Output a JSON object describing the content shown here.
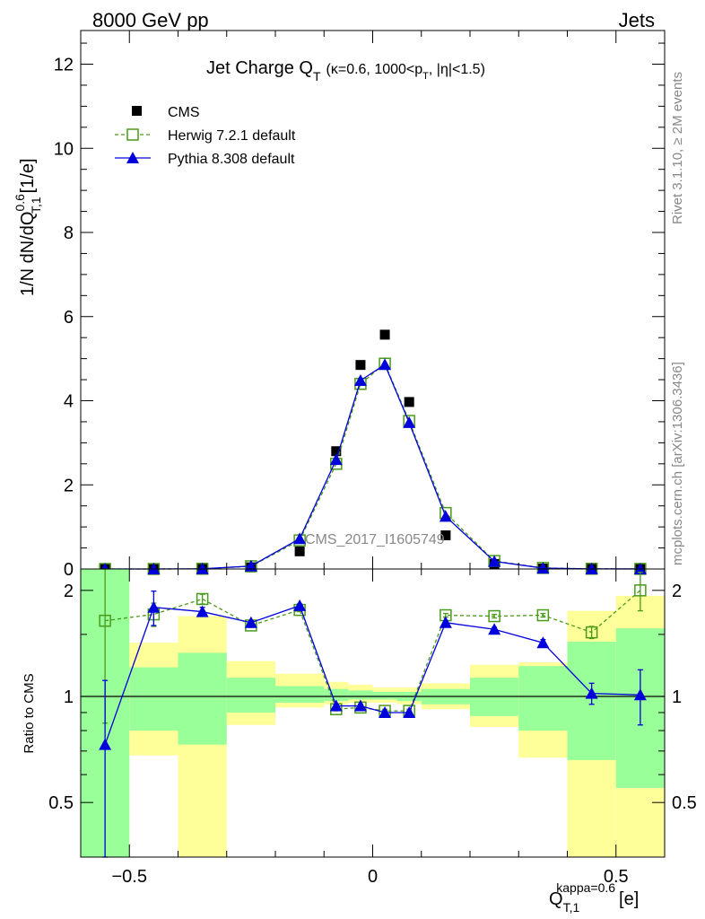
{
  "header": {
    "left": "8000 GeV pp",
    "right": "Jets"
  },
  "side_labels": {
    "rivet": "Rivet 3.1.10, ≥ 2M events",
    "mcplots": "mcplots.cern.ch [arXiv:1306.3436]"
  },
  "watermark": "CMS_2017_I1605749",
  "chart_data": [
    {
      "type": "scatter",
      "title_main": "Jet Charge Q",
      "title_sub": "T",
      "title_paren": "(κ=0.6, 1000<p",
      "title_paren_sub": "T",
      "title_paren_end": ", |η|<1.5)",
      "ylabel_main": "1/N dN/dQ",
      "ylabel_sup": "0.6",
      "ylabel_sub": "T,1",
      "ylabel_unit": "[1/e]",
      "xlim": [
        -0.6,
        0.6
      ],
      "ylim": [
        0,
        12.8
      ],
      "yticks": [
        0,
        2,
        4,
        6,
        8,
        10,
        12
      ],
      "legend_position": "top-left",
      "legend": [
        "CMS",
        "Herwig 7.2.1 default",
        "Pythia 8.308 default"
      ],
      "x": [
        -0.55,
        -0.45,
        -0.35,
        -0.25,
        -0.15,
        -0.075,
        -0.025,
        0.025,
        0.075,
        0.15,
        0.25,
        0.35,
        0.45,
        0.55
      ],
      "series": [
        {
          "name": "CMS",
          "color": "#000000",
          "marker": "square-filled",
          "values": [
            0.0,
            0.0,
            0.003,
            0.04,
            0.42,
            2.8,
            4.85,
            5.57,
            3.97,
            0.8,
            0.12,
            0.01,
            0.003,
            0.001
          ]
        },
        {
          "name": "Herwig 7.2.1 default",
          "color": "#4a9a1a",
          "marker": "square-open",
          "line": "dashed",
          "values": [
            0.0,
            0.0,
            0.005,
            0.065,
            0.68,
            2.5,
            4.4,
            4.88,
            3.52,
            1.33,
            0.19,
            0.025,
            0.005,
            0.002
          ]
        },
        {
          "name": "Pythia 8.308 default",
          "color": "#0000dd",
          "marker": "triangle-filled",
          "line": "solid",
          "values": [
            0.0,
            0.0,
            0.005,
            0.07,
            0.72,
            2.6,
            4.48,
            4.86,
            3.48,
            1.25,
            0.18,
            0.02,
            0.003,
            0.001
          ]
        }
      ]
    },
    {
      "type": "scatter",
      "ylabel": "Ratio to CMS",
      "xlabel_main": "Q",
      "xlabel_sub": "T,1",
      "xlabel_sup": "kappa=0.6",
      "xlabel_unit": "[e]",
      "xlim": [
        -0.6,
        0.6
      ],
      "ylim": [
        0.35,
        2.3
      ],
      "xticks": [
        -0.5,
        0,
        0.5
      ],
      "xtick_labels": [
        "−0.5",
        "0",
        "0.5"
      ],
      "yticks": [
        0.5,
        1,
        2
      ],
      "ytick_labels": [
        "0.5",
        "1",
        "2"
      ],
      "reference_line": 1,
      "bands": {
        "edges": [
          -0.6,
          -0.5,
          -0.4,
          -0.3,
          -0.2,
          -0.1,
          -0.05,
          0.0,
          0.05,
          0.1,
          0.2,
          0.3,
          0.4,
          0.5,
          0.6
        ],
        "yellow_low": [
          0.35,
          0.68,
          0.35,
          0.83,
          0.93,
          0.95,
          0.96,
          0.96,
          0.95,
          0.92,
          0.82,
          0.67,
          0.35,
          0.35
        ],
        "yellow_high": [
          2.3,
          1.42,
          1.69,
          1.26,
          1.16,
          1.1,
          1.08,
          1.06,
          1.06,
          1.09,
          1.23,
          1.25,
          1.75,
          1.93
        ],
        "green_low": [
          0.35,
          0.8,
          0.73,
          0.9,
          0.96,
          0.97,
          0.98,
          0.98,
          0.97,
          0.95,
          0.88,
          0.8,
          0.66,
          0.55
        ],
        "green_high": [
          2.3,
          1.21,
          1.33,
          1.13,
          1.07,
          1.05,
          1.04,
          1.03,
          1.03,
          1.05,
          1.13,
          1.22,
          1.43,
          1.56
        ]
      },
      "series": [
        {
          "name": "Herwig 7.2.1 default",
          "color": "#4a9a1a",
          "values": [
            1.64,
            1.71,
            1.89,
            1.59,
            1.76,
            0.92,
            0.93,
            0.91,
            0.91,
            1.7,
            1.69,
            1.7,
            1.52,
            2.0
          ],
          "err_low": [
            0.8,
            0.13,
            0.06,
            0.02,
            0.02,
            0.01,
            0.01,
            0.01,
            0.01,
            0.02,
            0.02,
            0.02,
            0.06,
            0.25
          ],
          "err_high": [
            0.8,
            0.13,
            0.06,
            0.02,
            0.02,
            0.01,
            0.01,
            0.01,
            0.01,
            0.02,
            0.02,
            0.02,
            0.06,
            0.25
          ]
        },
        {
          "name": "Pythia 8.308 default",
          "color": "#0000dd",
          "values": [
            0.73,
            1.79,
            1.74,
            1.62,
            1.81,
            0.94,
            0.94,
            0.9,
            0.9,
            1.62,
            1.55,
            1.42,
            1.02,
            1.01
          ],
          "err_low": [
            0.38,
            0.2,
            0.05,
            0.02,
            0.02,
            0.01,
            0.01,
            0.01,
            0.01,
            0.02,
            0.02,
            0.03,
            0.07,
            0.18
          ],
          "err_high": [
            0.38,
            0.2,
            0.05,
            0.02,
            0.02,
            0.01,
            0.01,
            0.01,
            0.01,
            0.02,
            0.02,
            0.03,
            0.07,
            0.18
          ]
        }
      ]
    }
  ]
}
